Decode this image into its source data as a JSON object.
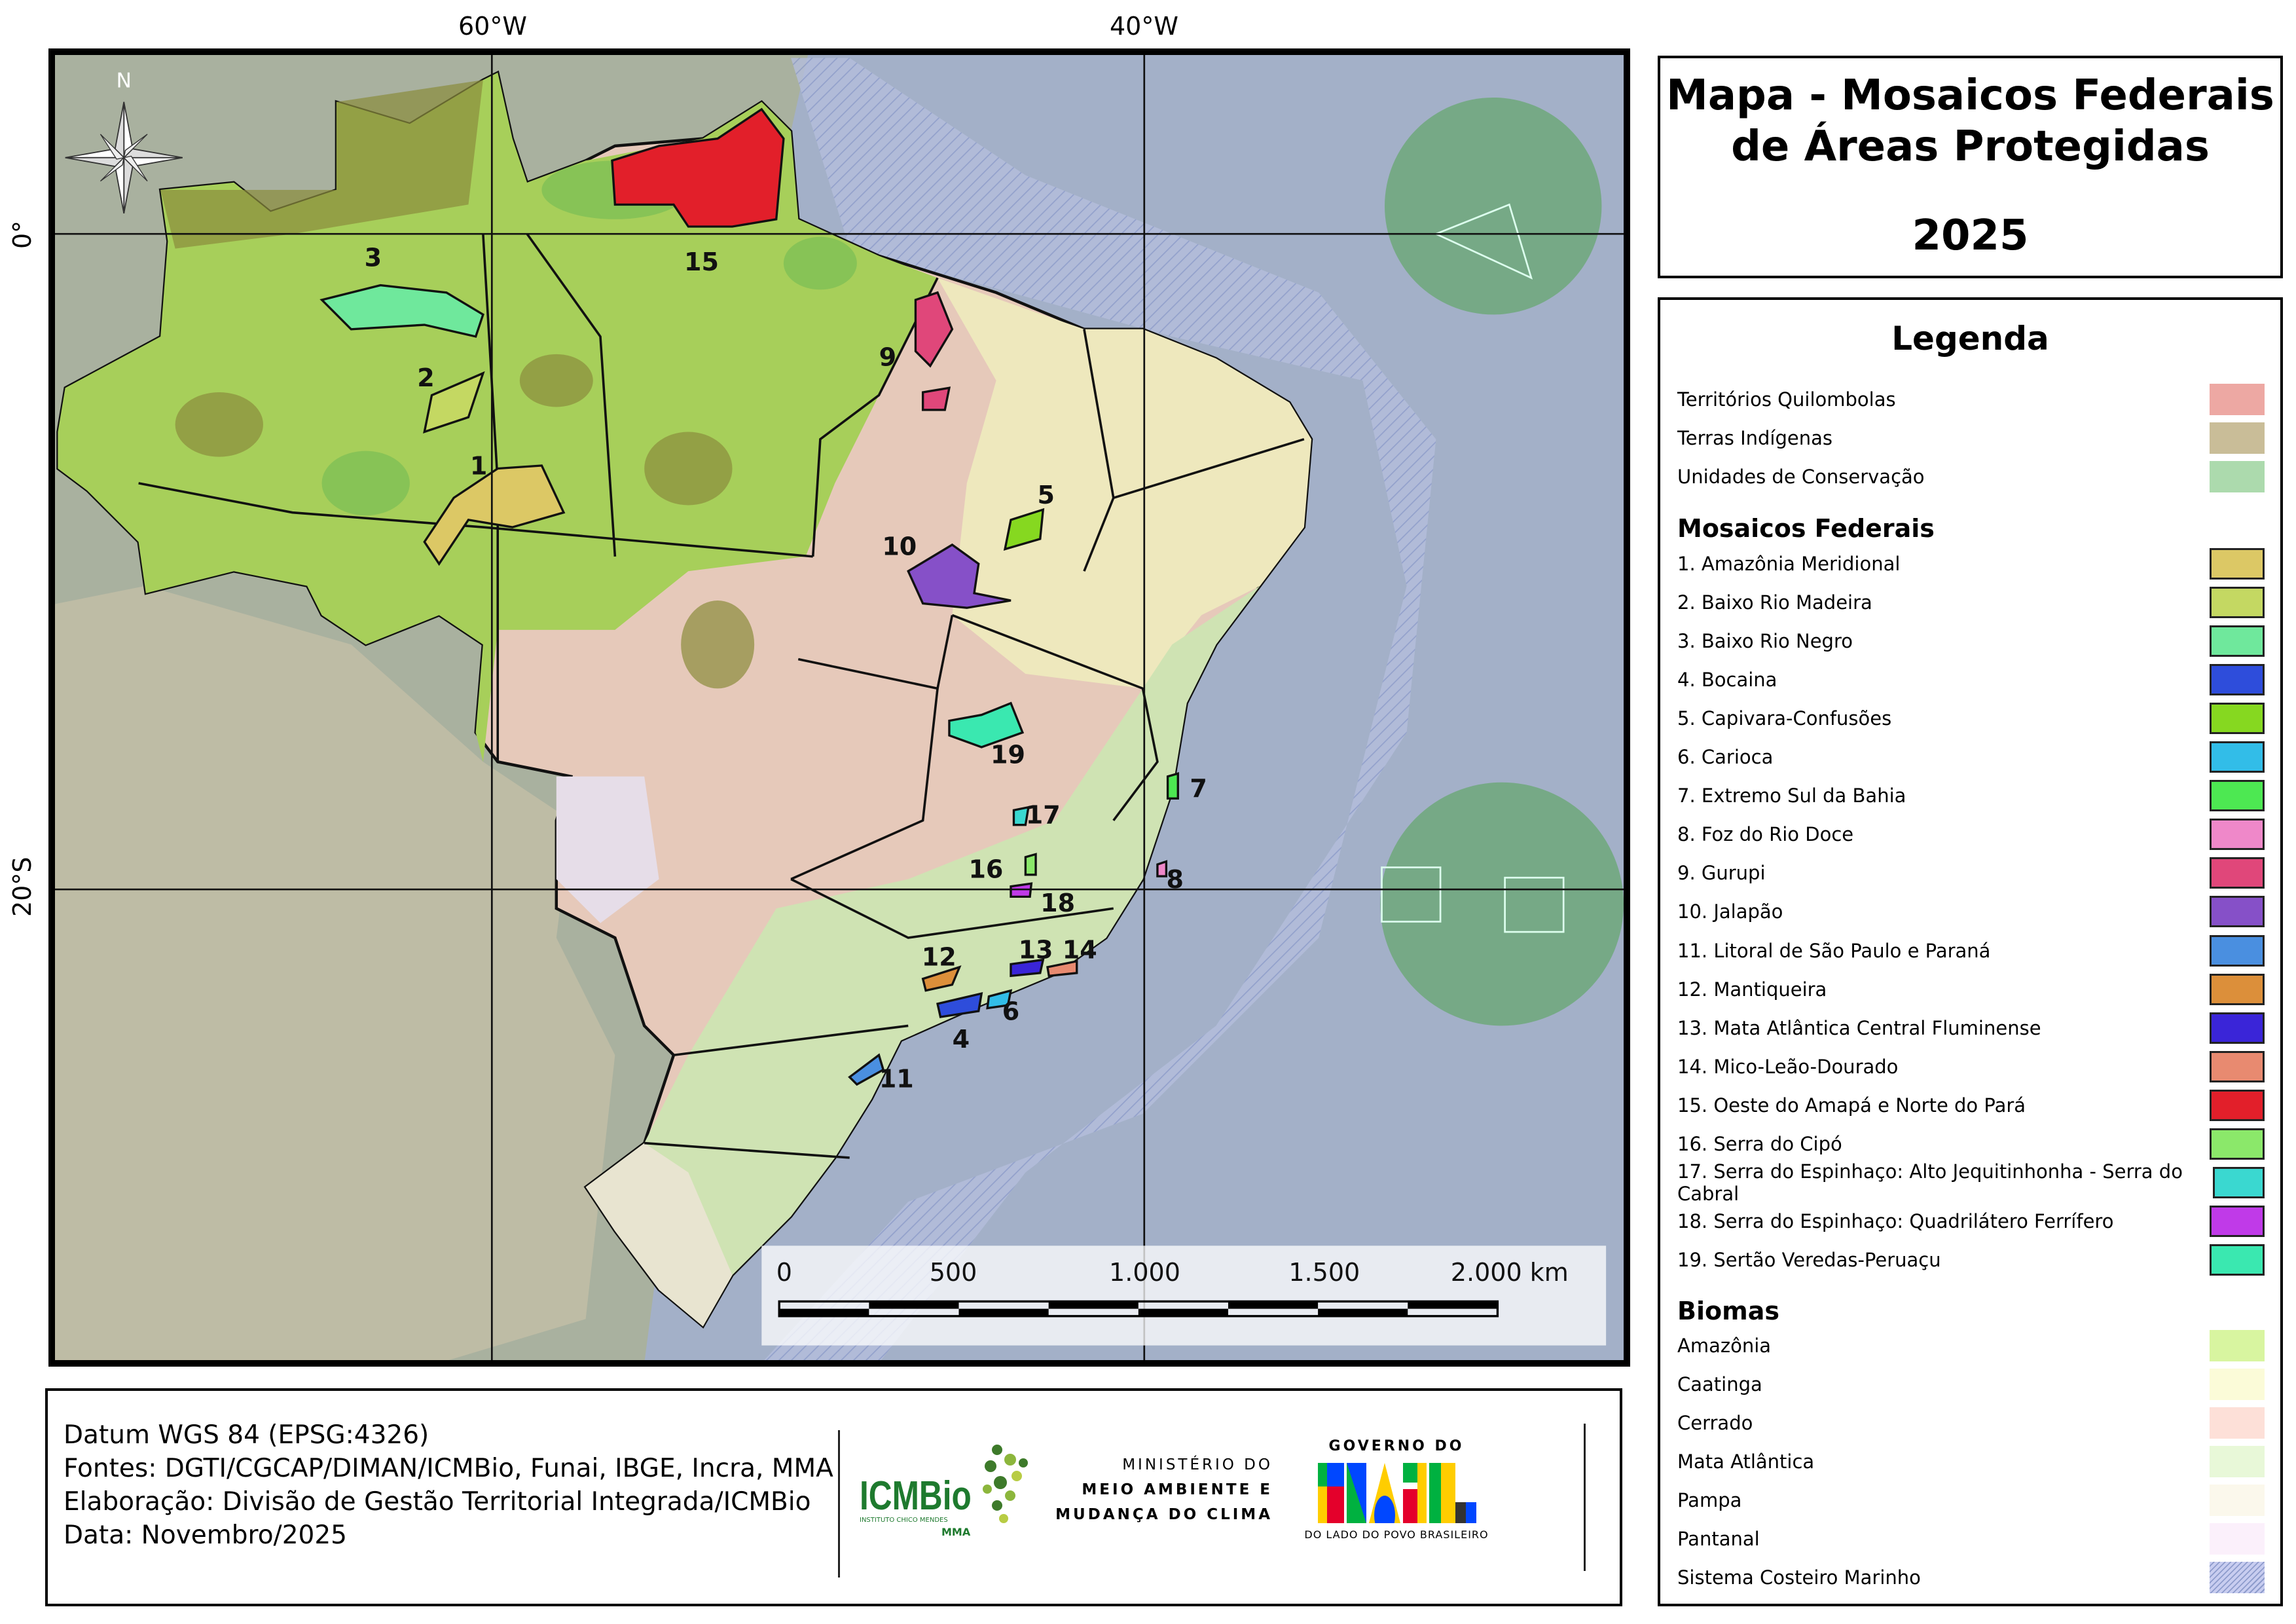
{
  "title": {
    "line1": "Mapa - Mosaicos Federais",
    "line2": "de Áreas Protegidas",
    "year": "2025"
  },
  "map": {
    "coord_labels": {
      "lon_60w": "60°W",
      "lon_40w": "40°W",
      "lat_0": "0°",
      "lat_20s": "20°S"
    },
    "north_label": "N",
    "mosaic_labels": [
      "1",
      "2",
      "3",
      "4",
      "5",
      "6",
      "7",
      "8",
      "9",
      "10",
      "11",
      "12",
      "13",
      "14",
      "15",
      "16",
      "17",
      "18",
      "19"
    ],
    "scale_bar": {
      "ticks": [
        "0",
        "500",
        "1.000",
        "1.500",
        "2.000 km"
      ]
    }
  },
  "legend": {
    "title": "Legenda",
    "base_layers": [
      {
        "label": "Territórios Quilombolas",
        "color": "#eda8a3"
      },
      {
        "label": "Terras Indígenas",
        "color": "#c9bd98"
      },
      {
        "label": "Unidades de Conservação",
        "color": "#acdaad"
      }
    ],
    "mosaics_title": "Mosaicos Federais",
    "mosaics": [
      {
        "label": "1. Amazônia Meridional",
        "color": "#dcc865"
      },
      {
        "label": "2. Baixo Rio Madeira",
        "color": "#c4d862"
      },
      {
        "label": "3. Baixo Rio Negro",
        "color": "#6fe89c"
      },
      {
        "label": "4. Bocaina",
        "color": "#2e4ddb"
      },
      {
        "label": "5. Capivara-Confusões",
        "color": "#86d820"
      },
      {
        "label": "6. Carioca",
        "color": "#32bde8"
      },
      {
        "label": "7. Extremo Sul da Bahia",
        "color": "#4de852"
      },
      {
        "label": "8. Foz do Rio Doce",
        "color": "#ef88c9"
      },
      {
        "label": "9. Gurupi",
        "color": "#e0477a"
      },
      {
        "label": "10. Jalapão",
        "color": "#8650c8"
      },
      {
        "label": "11. Litoral de São Paulo e Paraná",
        "color": "#4a8fe0"
      },
      {
        "label": "12. Mantiqueira",
        "color": "#dc8f3a"
      },
      {
        "label": "13. Mata Atlântica Central Fluminense",
        "color": "#3a25d8"
      },
      {
        "label": "14. Mico-Leão-Dourado",
        "color": "#e88a70"
      },
      {
        "label": "15. Oeste do Amapá e Norte do Pará",
        "color": "#e21f2a"
      },
      {
        "label": "16. Serra do Cipó",
        "color": "#8be86a"
      },
      {
        "label": "17. Serra do Espinhaço: Alto Jequitinhonha - Serra do Cabral",
        "color": "#3ad8d0"
      },
      {
        "label": "18. Serra do Espinhaço: Quadrilátero Ferrífero",
        "color": "#c03ae8"
      },
      {
        "label": "19. Sertão Veredas-Peruaçu",
        "color": "#3ae8b0"
      }
    ],
    "biomes_title": "Biomas",
    "biomes": [
      {
        "label": "Amazônia",
        "color": "#d8f5a0"
      },
      {
        "label": "Caatinga",
        "color": "#fbfbd8"
      },
      {
        "label": "Cerrado",
        "color": "#fde0d8"
      },
      {
        "label": "Mata Atlântica",
        "color": "#e8f8d8"
      },
      {
        "label": "Pampa",
        "color": "#fbf8ec"
      },
      {
        "label": "Pantanal",
        "color": "#fbf0fb"
      },
      {
        "label": "Sistema Costeiro Marinho",
        "color": "#c8cdf0"
      }
    ]
  },
  "footer": {
    "datum": "Datum WGS 84 (EPSG:4326)",
    "sources": "Fontes: DGTI/CGCAP/DIMAN/ICMBio, Funai, IBGE, Incra, MMA",
    "elaboration": "Elaboração: Divisão de Gestão Territorial Integrada/ICMBio",
    "date": "Data: Novembro/2025",
    "icmbio_logo": {
      "name": "ICMBio",
      "sub": "INSTITUTO CHICO MENDES",
      "mma": "MMA"
    },
    "ministry": {
      "line1": "MINISTÉRIO DO",
      "line2": "MEIO AMBIENTE E",
      "line3": "MUDANÇA DO CLIMA"
    },
    "gov_logo": {
      "top": "GOVERNO DO",
      "word": "BRASIL",
      "bottom": "DO LADO DO POVO BRASILEIRO"
    }
  }
}
